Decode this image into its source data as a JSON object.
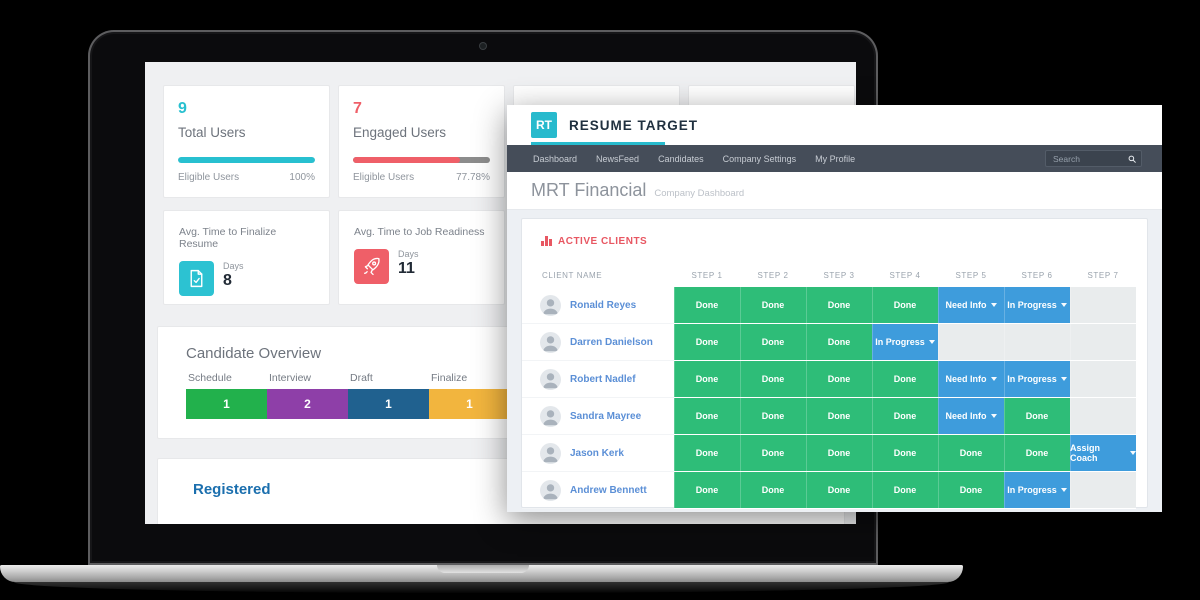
{
  "laptop_dashboard": {
    "stat_cards": [
      {
        "value": "9",
        "label": "Total Users",
        "metric_label": "Eligible Users",
        "metric_value": "100%",
        "progress": 100,
        "accent": "#28c0d0"
      },
      {
        "value": "7",
        "label": "Engaged Users",
        "metric_label": "Eligible Users",
        "metric_value": "77.78%",
        "progress": 77.78,
        "accent": "#ef5f68"
      }
    ],
    "kpi_cards": [
      {
        "title": "Avg. Time to Finalize Resume",
        "unit": "Days",
        "value": "8",
        "icon": "document-check-icon",
        "accent": "#2cc2d2"
      },
      {
        "title": "Avg. Time to Job Readiness",
        "unit": "Days",
        "value": "11",
        "icon": "rocket-icon",
        "accent": "#ef5f68"
      }
    ],
    "candidate_overview": {
      "title": "Candidate Overview",
      "stages": [
        {
          "label": "Schedule",
          "value": "1",
          "color": "#22b14c"
        },
        {
          "label": "Interview",
          "value": "2",
          "color": "#8e3fa8"
        },
        {
          "label": "Draft",
          "value": "1",
          "color": "#20618f"
        },
        {
          "label": "Finalize",
          "value": "1",
          "color": "#f2b53e"
        }
      ]
    },
    "registered_title": "Registered"
  },
  "app": {
    "logo_short": "RT",
    "logo_full": "RESUME TARGET",
    "nav": [
      "Dashboard",
      "NewsFeed",
      "Candidates",
      "Company Settings",
      "My Profile"
    ],
    "search_placeholder": "Search",
    "page_title": "MRT Financial",
    "page_subtitle": "Company Dashboard",
    "clients_panel_title": "ACTIVE CLIENTS",
    "table": {
      "columns": [
        "CLIENT NAME",
        "STEP 1",
        "STEP 2",
        "STEP 3",
        "STEP 4",
        "STEP 5",
        "STEP 6",
        "STEP 7"
      ],
      "rows": [
        {
          "name": "Ronald Reyes",
          "steps": [
            {
              "label": "Done",
              "status": "done"
            },
            {
              "label": "Done",
              "status": "done"
            },
            {
              "label": "Done",
              "status": "done"
            },
            {
              "label": "Done",
              "status": "done"
            },
            {
              "label": "Need Info",
              "status": "active",
              "dropdown": true
            },
            {
              "label": "In Progress",
              "status": "active",
              "dropdown": true
            },
            {
              "label": "",
              "status": "empty"
            }
          ]
        },
        {
          "name": "Darren Danielson",
          "steps": [
            {
              "label": "Done",
              "status": "done"
            },
            {
              "label": "Done",
              "status": "done"
            },
            {
              "label": "Done",
              "status": "done"
            },
            {
              "label": "In Progress",
              "status": "active",
              "dropdown": true
            },
            {
              "label": "",
              "status": "empty"
            },
            {
              "label": "",
              "status": "empty"
            },
            {
              "label": "",
              "status": "empty"
            }
          ]
        },
        {
          "name": "Robert Nadlef",
          "steps": [
            {
              "label": "Done",
              "status": "done"
            },
            {
              "label": "Done",
              "status": "done"
            },
            {
              "label": "Done",
              "status": "done"
            },
            {
              "label": "Done",
              "status": "done"
            },
            {
              "label": "Need Info",
              "status": "active",
              "dropdown": true
            },
            {
              "label": "In Progress",
              "status": "active",
              "dropdown": true
            },
            {
              "label": "",
              "status": "empty"
            }
          ]
        },
        {
          "name": "Sandra Mayree",
          "steps": [
            {
              "label": "Done",
              "status": "done"
            },
            {
              "label": "Done",
              "status": "done"
            },
            {
              "label": "Done",
              "status": "done"
            },
            {
              "label": "Done",
              "status": "done"
            },
            {
              "label": "Need Info",
              "status": "active",
              "dropdown": true
            },
            {
              "label": "Done",
              "status": "done"
            },
            {
              "label": "",
              "status": "empty"
            }
          ]
        },
        {
          "name": "Jason Kerk",
          "steps": [
            {
              "label": "Done",
              "status": "done"
            },
            {
              "label": "Done",
              "status": "done"
            },
            {
              "label": "Done",
              "status": "done"
            },
            {
              "label": "Done",
              "status": "done"
            },
            {
              "label": "Done",
              "status": "done"
            },
            {
              "label": "Done",
              "status": "done"
            },
            {
              "label": "Assign Coach",
              "status": "active",
              "dropdown": true
            }
          ]
        },
        {
          "name": "Andrew Bennett",
          "steps": [
            {
              "label": "Done",
              "status": "done"
            },
            {
              "label": "Done",
              "status": "done"
            },
            {
              "label": "Done",
              "status": "done"
            },
            {
              "label": "Done",
              "status": "done"
            },
            {
              "label": "Done",
              "status": "done"
            },
            {
              "label": "In Progress",
              "status": "active",
              "dropdown": true
            },
            {
              "label": "",
              "status": "empty"
            }
          ]
        }
      ]
    }
  },
  "colors": {
    "accent_teal": "#28c0d0",
    "accent_red": "#ef5f68",
    "cell_done_green": "#2ebd78",
    "cell_action_blue": "#3e9cdc",
    "cell_empty_gray": "#e9eced",
    "navbar_dark": "#454d59",
    "client_link_blue": "#5b8fd6",
    "panel_title_red": "#e85762",
    "registered_blue": "#1b6fae"
  }
}
